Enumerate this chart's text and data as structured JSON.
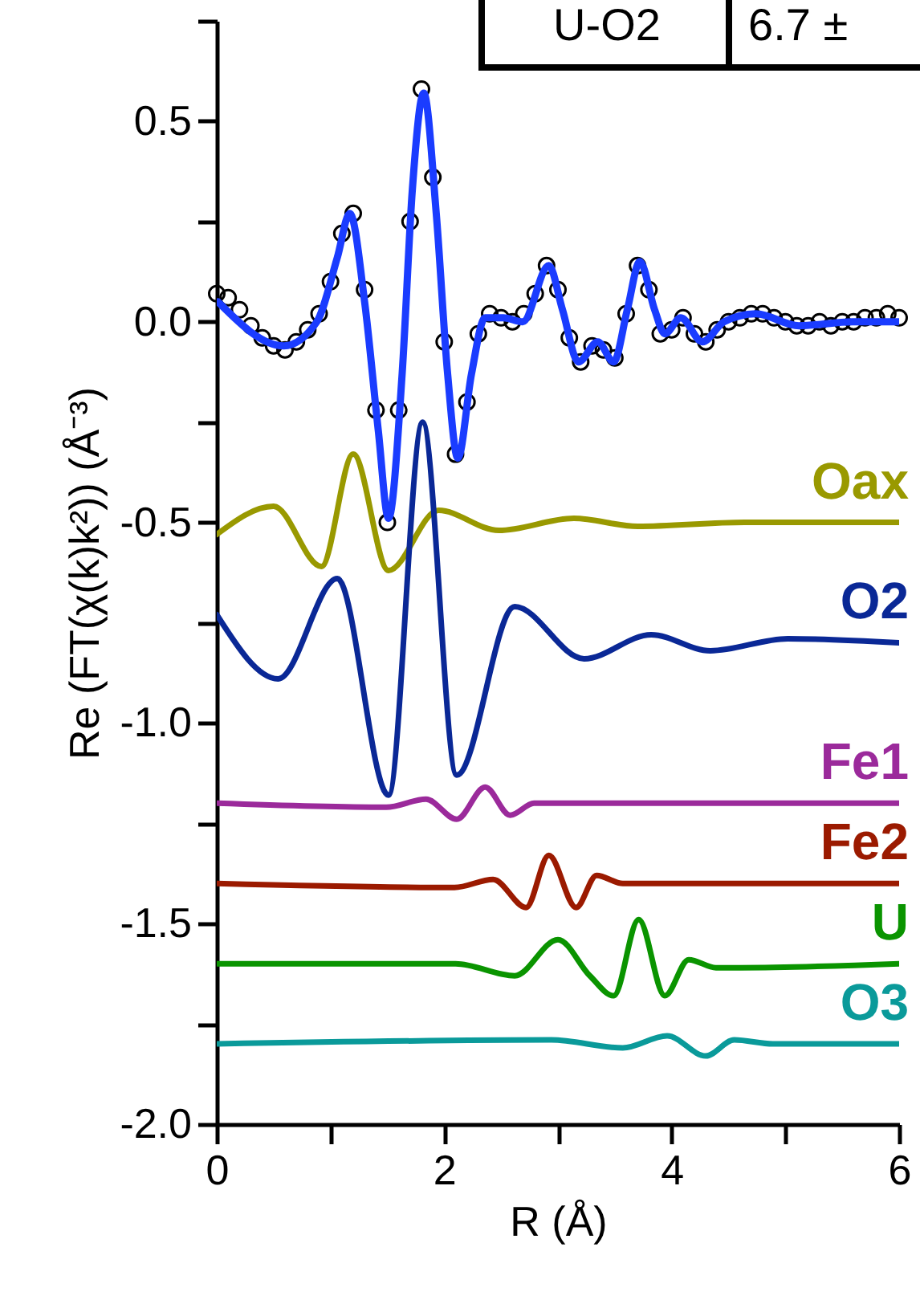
{
  "chart_data": {
    "type": "line",
    "xlabel": "R (Å)",
    "ylabel": "Re (FT(χ(k)k²)) (Å⁻³)",
    "annotations": [
      "U-O2",
      "6.7 ±"
    ],
    "xlim": [
      0,
      6
    ],
    "xticks": [
      0,
      {
        "value": 1,
        "label": null
      },
      2,
      {
        "value": 3,
        "label": null
      },
      4,
      {
        "value": 5,
        "label": null
      },
      6
    ],
    "ylim": [
      -2,
      0.75
    ],
    "yticks": [
      {
        "value": -2,
        "label": "-2.0"
      },
      {
        "value": -1.75,
        "label": null
      },
      {
        "value": -1.5,
        "label": "-1.5"
      },
      {
        "value": -1.25,
        "label": null
      },
      {
        "value": -1,
        "label": "-1.0"
      },
      {
        "value": -0.75,
        "label": null
      },
      {
        "value": -0.5,
        "label": "-0.5"
      },
      {
        "value": -0.25,
        "label": null
      },
      {
        "value": 0,
        "label": "0.0"
      },
      {
        "value": 0.25,
        "label": null
      },
      {
        "value": 0.5,
        "label": "0.5"
      },
      {
        "value": 0.75,
        "label": null
      }
    ],
    "series": [
      {
        "type": "scatter",
        "marker": "circle",
        "color": "#000000",
        "x": [
          0,
          0.1,
          0.2,
          0.3,
          0.4,
          0.5,
          0.6,
          0.7,
          0.8,
          0.9,
          1.0,
          1.1,
          1.2,
          1.3,
          1.4,
          1.5,
          1.6,
          1.7,
          1.8,
          1.9,
          2.0,
          2.1,
          2.2,
          2.3,
          2.4,
          2.5,
          2.6,
          2.7,
          2.8,
          2.9,
          3.0,
          3.1,
          3.2,
          3.3,
          3.4,
          3.5,
          3.6,
          3.7,
          3.8,
          3.9,
          4.0,
          4.1,
          4.2,
          4.3,
          4.4,
          4.5,
          4.6,
          4.7,
          4.8,
          4.9,
          5.0,
          5.1,
          5.2,
          5.3,
          5.4,
          5.5,
          5.6,
          5.7,
          5.8,
          5.9,
          6.0
        ],
        "values": [
          0.07,
          0.06,
          0.03,
          -0.01,
          -0.04,
          -0.06,
          -0.07,
          -0.05,
          -0.02,
          0.02,
          0.1,
          0.22,
          0.27,
          0.08,
          -0.22,
          -0.5,
          -0.22,
          0.25,
          0.58,
          0.36,
          -0.05,
          -0.33,
          -0.2,
          -0.03,
          0.02,
          0.01,
          0.0,
          0.02,
          0.07,
          0.14,
          0.08,
          -0.04,
          -0.1,
          -0.06,
          -0.07,
          -0.09,
          0.02,
          0.14,
          0.08,
          -0.03,
          -0.02,
          0.01,
          -0.03,
          -0.05,
          -0.02,
          0.0,
          0.01,
          0.02,
          0.02,
          0.01,
          0.0,
          -0.01,
          -0.01,
          0.0,
          -0.01,
          0.0,
          0.0,
          0.01,
          0.01,
          0.02,
          0.01
        ]
      },
      {
        "color": "#1a3cff",
        "x": [
          0.01,
          0.59,
          0.88,
          1.06,
          1.17,
          1.3,
          1.42,
          1.51,
          1.63,
          1.72,
          1.82,
          1.93,
          2.03,
          2.12,
          2.24,
          2.36,
          2.52,
          2.69,
          2.92,
          3.04,
          3.18,
          3.35,
          3.49,
          3.61,
          3.72,
          3.85,
          3.94,
          4.08,
          4.27,
          4.46,
          4.74,
          5.12,
          5.59,
          6.0
        ],
        "values": [
          0.05,
          -0.06,
          0.0,
          0.16,
          0.27,
          0.05,
          -0.27,
          -0.49,
          -0.13,
          0.33,
          0.57,
          0.27,
          -0.13,
          -0.34,
          -0.13,
          0.01,
          0.01,
          0.0,
          0.14,
          0.03,
          -0.1,
          -0.05,
          -0.1,
          0.03,
          0.15,
          0.03,
          -0.03,
          0.01,
          -0.05,
          0.0,
          0.02,
          -0.01,
          0.0,
          0.0
        ]
      },
      {
        "type": "line",
        "name": "Oax",
        "color": "#999900",
        "x": [
          0,
          0.5,
          0.92,
          1.2,
          1.51,
          1.95,
          2.48,
          3.14,
          3.7,
          4.64,
          6.0
        ],
        "values": [
          -0.53,
          -0.46,
          -0.61,
          -0.33,
          -0.62,
          -0.47,
          -0.52,
          -0.49,
          -0.51,
          -0.5,
          -0.5
        ]
      },
      {
        "type": "line",
        "name": "O2",
        "color": "#0a2896",
        "x": [
          0,
          0.54,
          1.06,
          1.51,
          1.81,
          2.11,
          2.62,
          3.23,
          3.82,
          4.34,
          5.02,
          6.0
        ],
        "values": [
          -0.73,
          -0.89,
          -0.64,
          -1.18,
          -0.25,
          -1.13,
          -0.71,
          -0.84,
          -0.78,
          -0.82,
          -0.79,
          -0.8
        ]
      },
      {
        "type": "line",
        "name": "Fe1",
        "color": "#9b2a9b",
        "x": [
          0,
          1.49,
          1.84,
          2.11,
          2.36,
          2.58,
          2.79,
          6.0
        ],
        "values": [
          -1.2,
          -1.21,
          -1.19,
          -1.24,
          -1.16,
          -1.23,
          -1.2,
          -1.2
        ]
      },
      {
        "type": "line",
        "name": "Fe2",
        "color": "#9b1a00",
        "x": [
          0,
          2.09,
          2.43,
          2.72,
          2.92,
          3.16,
          3.34,
          3.57,
          3.98,
          6.0
        ],
        "values": [
          -1.4,
          -1.41,
          -1.39,
          -1.46,
          -1.33,
          -1.46,
          -1.38,
          -1.4,
          -1.4,
          -1.4
        ]
      },
      {
        "type": "line",
        "name": "U",
        "color": "#0a9400",
        "x": [
          0,
          2.1,
          2.62,
          3.0,
          3.28,
          3.49,
          3.71,
          3.94,
          4.15,
          4.39,
          4.6,
          6.0
        ],
        "values": [
          -1.6,
          -1.6,
          -1.63,
          -1.54,
          -1.63,
          -1.68,
          -1.49,
          -1.68,
          -1.59,
          -1.61,
          -1.61,
          -1.6
        ]
      },
      {
        "type": "line",
        "name": "O3",
        "color": "#0a9a9a",
        "x": [
          0,
          2.94,
          3.57,
          3.96,
          4.3,
          4.55,
          4.89,
          6.0
        ],
        "values": [
          -1.8,
          -1.79,
          -1.81,
          -1.78,
          -1.83,
          -1.79,
          -1.8,
          -1.8
        ]
      }
    ]
  }
}
